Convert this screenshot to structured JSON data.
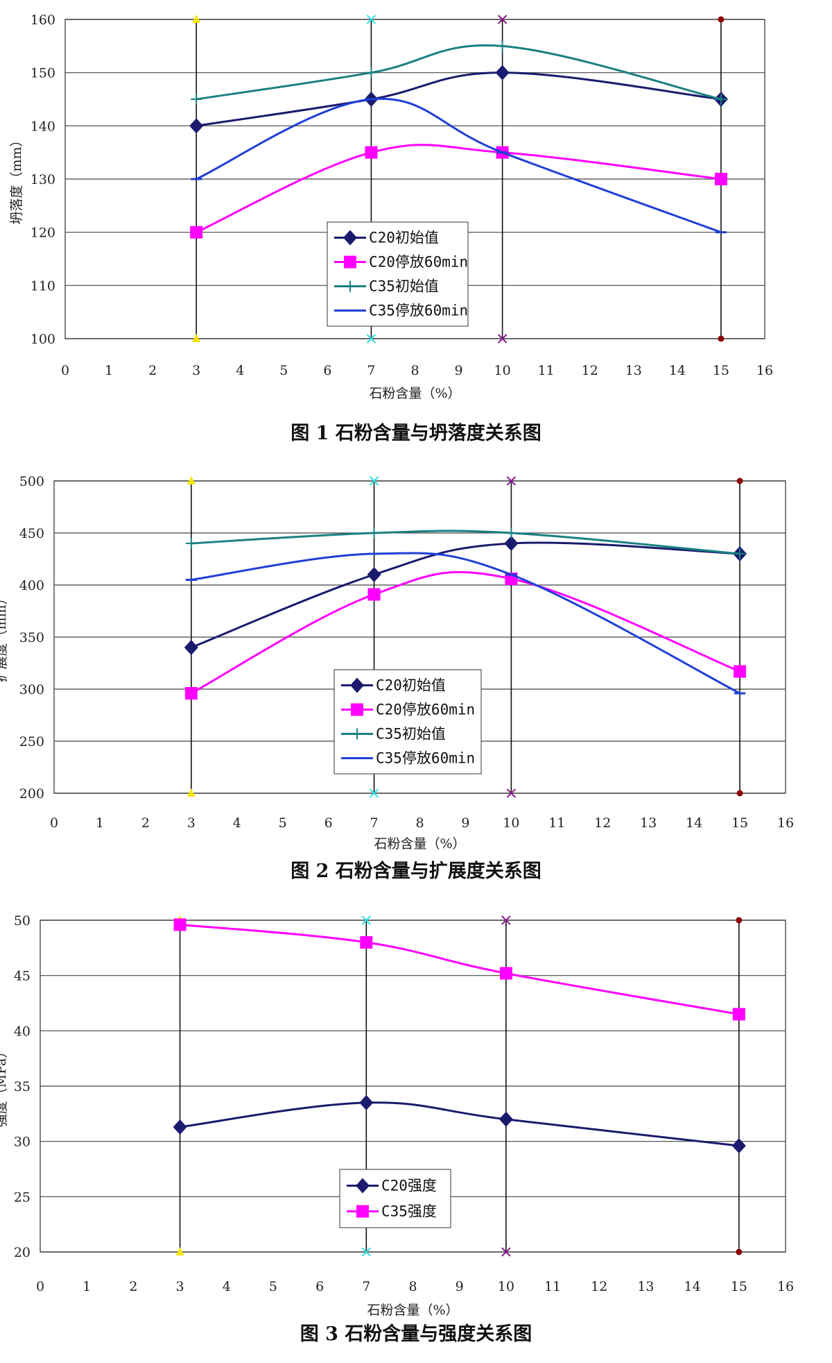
{
  "chart_data": [
    {
      "type": "line",
      "title": "图 1  石粉含量与坍落度关系图",
      "xlabel": "石粉含量（%）",
      "ylabel": "坍落度（mm）",
      "xlim": [
        0,
        16
      ],
      "ylim": [
        100,
        160
      ],
      "xticks": [
        "0",
        "1",
        "2",
        "3",
        "4",
        "5",
        "6",
        "7",
        "8",
        "9",
        "10",
        "11",
        "12",
        "13",
        "14",
        "15",
        "16"
      ],
      "yticks": [
        "100",
        "110",
        "120",
        "130",
        "140",
        "150",
        "160"
      ],
      "grid": "horizontal",
      "legend": "bottom-center",
      "reference_x": [
        3,
        7,
        10,
        15
      ],
      "series": [
        {
          "name": "C20初始值",
          "color": "#1a1a6e",
          "marker": "diamond",
          "x": [
            3,
            7,
            10,
            15
          ],
          "y": [
            140,
            145,
            150,
            145
          ]
        },
        {
          "name": "C20停放60min",
          "color": "#ff00ff",
          "marker": "square",
          "x": [
            3,
            7,
            10,
            15
          ],
          "y": [
            120,
            135,
            135,
            130
          ]
        },
        {
          "name": "C35初始值",
          "color": "#1a8080",
          "marker": "plus",
          "x": [
            3,
            7,
            10,
            15
          ],
          "y": [
            145,
            150,
            155,
            145
          ]
        },
        {
          "name": "C35停放60min",
          "color": "#1f3fd6",
          "marker": "dash",
          "x": [
            3,
            7,
            10,
            15
          ],
          "y": [
            130,
            145,
            135,
            120
          ]
        }
      ]
    },
    {
      "type": "line",
      "title": "图 2  石粉含量与扩展度关系图",
      "xlabel": "石粉含量（%）",
      "ylabel": "扩展度（mm）",
      "xlim": [
        0,
        16
      ],
      "ylim": [
        200,
        500
      ],
      "xticks": [
        "0",
        "1",
        "2",
        "3",
        "4",
        "5",
        "6",
        "7",
        "8",
        "9",
        "10",
        "11",
        "12",
        "13",
        "14",
        "15",
        "16"
      ],
      "yticks": [
        "200",
        "250",
        "300",
        "350",
        "400",
        "450",
        "500"
      ],
      "grid": "horizontal",
      "legend": "bottom-center",
      "reference_x": [
        3,
        7,
        10,
        15
      ],
      "series": [
        {
          "name": "C20初始值",
          "color": "#1a1a6e",
          "marker": "diamond",
          "x": [
            3,
            7,
            10,
            15
          ],
          "y": [
            340,
            410,
            440,
            430
          ]
        },
        {
          "name": "C20停放60min",
          "color": "#ff00ff",
          "marker": "square",
          "x": [
            3,
            7,
            10,
            15
          ],
          "y": [
            296,
            391,
            406,
            317
          ]
        },
        {
          "name": "C35初始值",
          "color": "#1a8080",
          "marker": "plus",
          "x": [
            3,
            7,
            10,
            15
          ],
          "y": [
            440,
            450,
            450,
            430
          ]
        },
        {
          "name": "C35停放60min",
          "color": "#1f3fd6",
          "marker": "dash",
          "x": [
            3,
            7,
            10,
            15
          ],
          "y": [
            405,
            430,
            410,
            296
          ]
        }
      ]
    },
    {
      "type": "line",
      "title": "图 3  石粉含量与强度关系图",
      "xlabel": "石粉含量（%）",
      "ylabel": "强度（MPa）",
      "xlim": [
        0,
        16
      ],
      "ylim": [
        20,
        50
      ],
      "xticks": [
        "0",
        "1",
        "2",
        "3",
        "4",
        "5",
        "6",
        "7",
        "8",
        "9",
        "10",
        "11",
        "12",
        "13",
        "14",
        "15",
        "16"
      ],
      "yticks": [
        "20",
        "25",
        "30",
        "35",
        "40",
        "45",
        "50"
      ],
      "grid": "horizontal",
      "legend": "bottom-center",
      "reference_x": [
        3,
        7,
        10,
        15
      ],
      "series": [
        {
          "name": "C20强度",
          "color": "#1a1a6e",
          "marker": "diamond",
          "x": [
            3,
            7,
            10,
            15
          ],
          "y": [
            31.3,
            33.5,
            32.0,
            29.6
          ]
        },
        {
          "name": "C35强度",
          "color": "#ff00ff",
          "marker": "square",
          "x": [
            3,
            7,
            10,
            15
          ],
          "y": [
            49.6,
            48.0,
            45.2,
            41.5
          ]
        }
      ]
    }
  ],
  "reference_marker_colors": [
    "#f2e600",
    "#33e0e0",
    "#8b1a8b",
    "#8b0000"
  ]
}
